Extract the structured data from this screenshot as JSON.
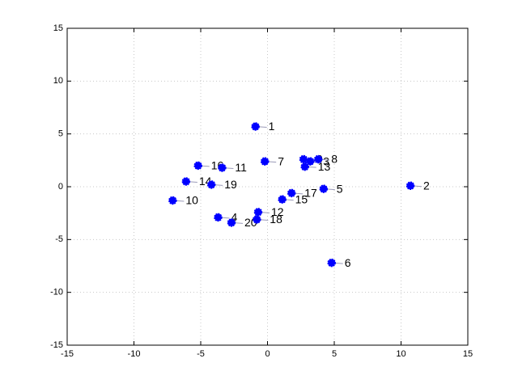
{
  "chart_data": {
    "type": "scatter",
    "x": [
      -0.9,
      10.7,
      3.2,
      -3.7,
      4.2,
      4.8,
      -0.2,
      3.8,
      2.7,
      -7.1,
      -3.4,
      -0.7,
      2.8,
      -6.1,
      1.1,
      -5.2,
      1.8,
      -0.8,
      -4.2,
      -2.7
    ],
    "y": [
      5.7,
      0.1,
      2.4,
      -2.9,
      -0.2,
      -7.2,
      2.4,
      2.6,
      2.6,
      -1.3,
      1.8,
      -2.4,
      1.9,
      0.5,
      -1.2,
      2.0,
      -0.6,
      -3.1,
      0.2,
      -3.4
    ],
    "labels": [
      "1",
      "2",
      "3",
      "4",
      "5",
      "6",
      "7",
      "8",
      "9",
      "10",
      "11",
      "12",
      "13",
      "14",
      "15",
      "16",
      "17",
      "18",
      "19",
      "20"
    ],
    "color": "#0000ff",
    "xlim": [
      -15,
      15
    ],
    "ylim": [
      -15,
      15
    ],
    "xticks": [
      -15,
      -10,
      -5,
      0,
      5,
      10,
      15
    ],
    "yticks": [
      -15,
      -10,
      -5,
      0,
      5,
      10,
      15
    ],
    "grid": true
  }
}
